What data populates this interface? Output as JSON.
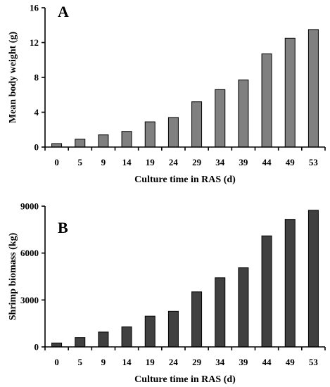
{
  "chart_data": [
    {
      "type": "bar",
      "panel_label": "A",
      "xlabel": "Culture time in RAS (d)",
      "ylabel": "Mean body weight (g)",
      "categories": [
        "0",
        "5",
        "9",
        "14",
        "19",
        "24",
        "29",
        "34",
        "39",
        "44",
        "49",
        "53"
      ],
      "values": [
        0.4,
        0.9,
        1.4,
        1.8,
        2.9,
        3.4,
        5.2,
        6.6,
        7.7,
        10.7,
        12.5,
        13.5
      ],
      "ylim": [
        0,
        16
      ],
      "yticks": [
        "0",
        "4",
        "8",
        "12",
        "16"
      ],
      "grid": false,
      "bar_color": "#808080"
    },
    {
      "type": "bar",
      "panel_label": "B",
      "xlabel": "Culture time in RAS (d)",
      "ylabel": "Shrimp biomass (kg)",
      "categories": [
        "0",
        "5",
        "9",
        "14",
        "19",
        "24",
        "29",
        "34",
        "39",
        "44",
        "49",
        "53"
      ],
      "values": [
        250,
        600,
        950,
        1280,
        1970,
        2280,
        3520,
        4420,
        5060,
        7100,
        8160,
        8740
      ],
      "ylim": [
        0,
        9000
      ],
      "yticks": [
        "0",
        "3000",
        "6000",
        "9000"
      ],
      "grid": false,
      "bar_color": "#404040"
    }
  ]
}
